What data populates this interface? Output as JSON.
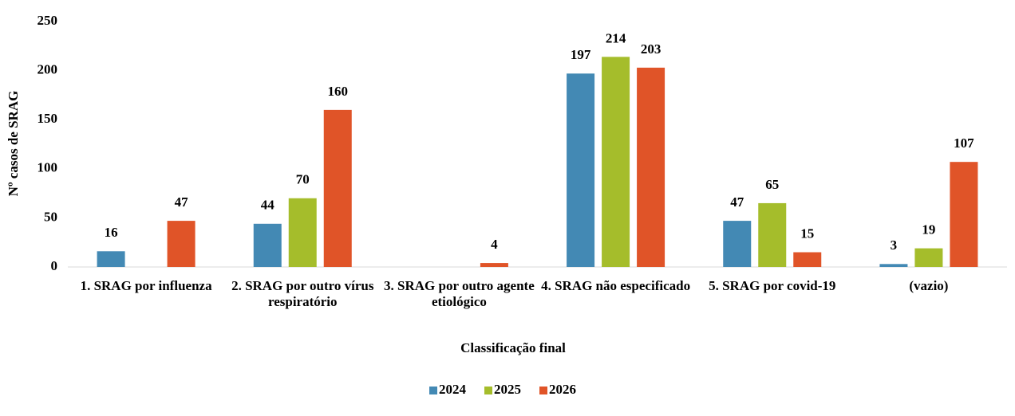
{
  "chart_data": {
    "type": "bar",
    "categories": [
      "1. SRAG por influenza",
      "2. SRAG por outro vírus respiratório",
      "3. SRAG por outro agente etiológico",
      "4. SRAG não especificado",
      "5. SRAG por covid-19",
      "(vazio)"
    ],
    "series": [
      {
        "name": "2024",
        "color": "#4389b4",
        "values": [
          16,
          44,
          null,
          197,
          47,
          3
        ]
      },
      {
        "name": "2025",
        "color": "#a5bd2b",
        "values": [
          null,
          70,
          null,
          214,
          65,
          19
        ]
      },
      {
        "name": "2026",
        "color": "#e05428",
        "values": [
          47,
          160,
          4,
          203,
          15,
          107
        ]
      }
    ],
    "x_label": "Classificação final",
    "y_label": "Nº  casos de SRAG",
    "ylim": [
      0,
      250
    ],
    "yticks": [
      0,
      50,
      100,
      150,
      200,
      250
    ],
    "grid": false,
    "legend": "bottom"
  }
}
